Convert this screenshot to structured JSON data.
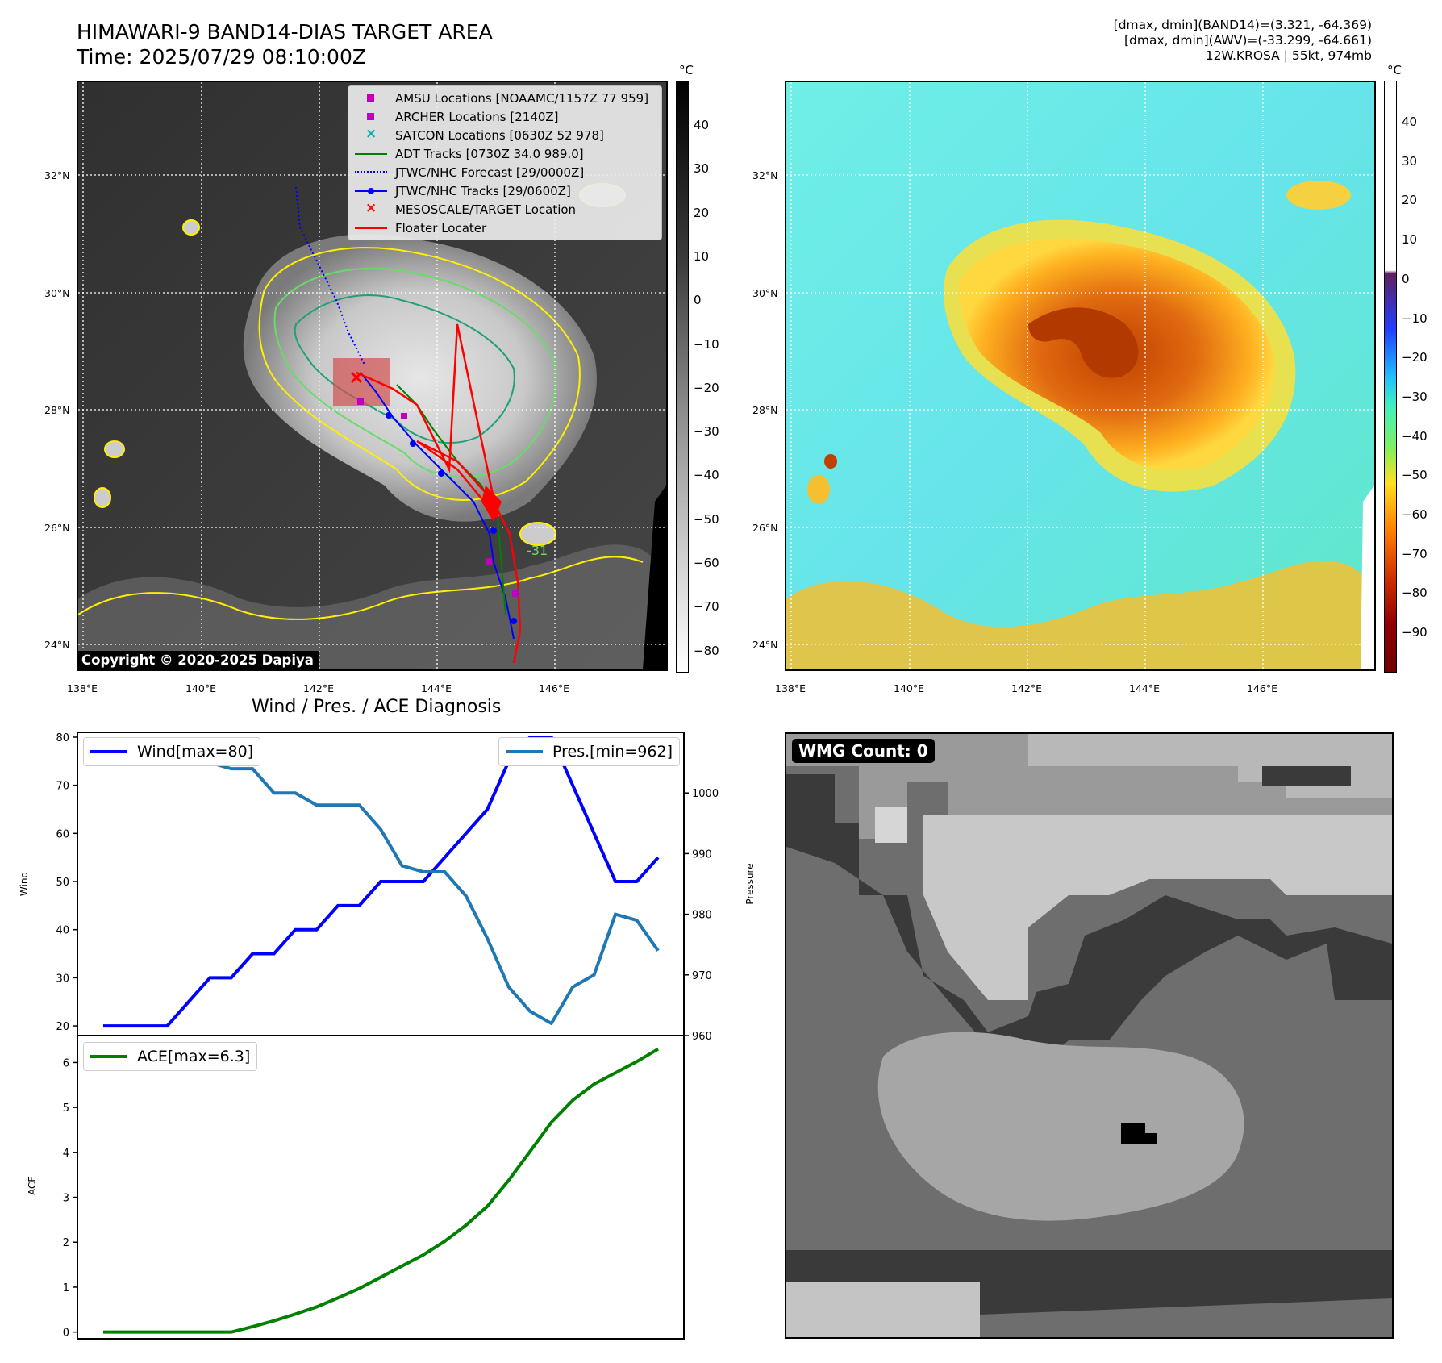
{
  "header": {
    "title_line1": "HIMAWARI-9 BAND14-DIAS TARGET AREA",
    "title_line2": "Time: 2025/07/29 08:10:00Z",
    "info_line1": "[dmax, dmin](BAND14)=(3.321, -64.369)",
    "info_line2": "[dmax, dmin](AWV)=(-33.299, -64.661)",
    "info_line3": "12W.KROSA | 55kt, 974mb"
  },
  "ir_panel": {
    "lat_labels": [
      "32°N",
      "30°N",
      "28°N",
      "26°N",
      "24°N"
    ],
    "lon_labels": [
      "138°E",
      "140°E",
      "142°E",
      "144°E",
      "146°E"
    ],
    "copyright": "Copyright © 2020-2025 Dapiya",
    "contour_label": "-31",
    "colorbar_unit": "°C",
    "colorbar_ticks": [
      "40",
      "30",
      "20",
      "10",
      "0",
      "−10",
      "−20",
      "−30",
      "−40",
      "−50",
      "−60",
      "−70",
      "−80"
    ],
    "legend": [
      {
        "label": "AMSU Locations [NOAAMC/1157Z 77 959]",
        "symbol": "square",
        "color": "#c000c0"
      },
      {
        "label": "ARCHER Locations [2140Z]",
        "symbol": "square",
        "color": "#c000c0"
      },
      {
        "label": "SATCON Locations [0630Z 52 978]",
        "symbol": "x",
        "color": "#00b0b0"
      },
      {
        "label": "ADT Tracks [0730Z 34.0 989.0]",
        "symbol": "line",
        "color": "#008000"
      },
      {
        "label": "JTWC/NHC Forecast [29/0000Z]",
        "symbol": "dotted",
        "color": "#0000ff"
      },
      {
        "label": "JTWC/NHC Tracks [29/0600Z]",
        "symbol": "line-dot",
        "color": "#0000ff"
      },
      {
        "label": "MESOSCALE/TARGET Location",
        "symbol": "x",
        "color": "#ff0000"
      },
      {
        "label": "Floater Locater",
        "symbol": "line",
        "color": "#ff0000"
      }
    ]
  },
  "awv_panel": {
    "lat_labels": [
      "32°N",
      "30°N",
      "28°N",
      "26°N",
      "24°N"
    ],
    "lon_labels": [
      "138°E",
      "140°E",
      "142°E",
      "144°E",
      "146°E"
    ],
    "colorbar_unit": "°C",
    "colorbar_ticks": [
      "40",
      "30",
      "20",
      "10",
      "0",
      "−10",
      "−20",
      "−30",
      "−40",
      "−50",
      "−60",
      "−70",
      "−80",
      "−90"
    ]
  },
  "wmg_panel": {
    "count_label": "WMG Count: 0"
  },
  "colors": {
    "wind": "#0000ff",
    "pressure": "#1f77b4",
    "ace": "#008000",
    "ir_background": "#3a3a3a",
    "awv_background": "#66e8e8"
  },
  "chart_data": [
    {
      "type": "line",
      "title": "Wind / Pres. / ACE Diagnosis",
      "ylabel": "Wind",
      "y2label": "Pressure",
      "ylim": [
        18,
        81
      ],
      "y2lim": [
        960,
        1010
      ],
      "yticks": [
        20,
        30,
        40,
        50,
        60,
        70,
        80
      ],
      "y2ticks": [
        960,
        970,
        980,
        990,
        1000
      ],
      "series": [
        {
          "name": "Wind[max=80]",
          "axis": "left",
          "values": [
            20,
            20,
            20,
            20,
            25,
            30,
            30,
            35,
            35,
            40,
            40,
            45,
            45,
            50,
            50,
            50,
            55,
            60,
            65,
            75,
            80,
            80,
            70,
            60,
            50,
            50,
            55
          ]
        },
        {
          "name": "Pres.[min=962]",
          "axis": "right",
          "values": [
            1007,
            1007,
            1007,
            1007,
            1005,
            1005,
            1004,
            1004,
            1000,
            1000,
            998,
            998,
            998,
            994,
            988,
            987,
            987,
            983,
            976,
            968,
            964,
            962,
            968,
            970,
            980,
            979,
            974
          ]
        }
      ]
    },
    {
      "type": "line",
      "ylabel": "ACE",
      "ylim": [
        -0.15,
        6.6
      ],
      "yticks": [
        0,
        1,
        2,
        3,
        4,
        5,
        6
      ],
      "series": [
        {
          "name": "ACE[max=6.3]",
          "values": [
            0,
            0,
            0,
            0,
            0,
            0,
            0,
            0.12,
            0.25,
            0.4,
            0.56,
            0.76,
            0.97,
            1.22,
            1.47,
            1.72,
            2.02,
            2.38,
            2.8,
            3.38,
            4.02,
            4.67,
            5.16,
            5.52,
            5.77,
            6.02,
            6.3
          ]
        }
      ]
    }
  ]
}
